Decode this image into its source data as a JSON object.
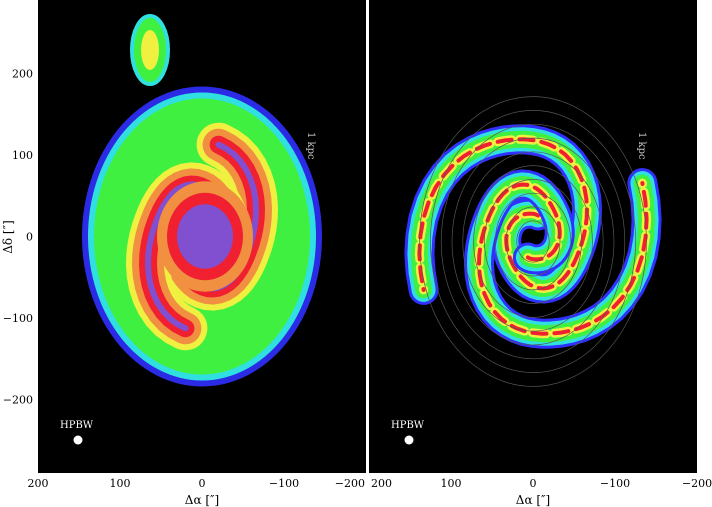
{
  "chart_data": [
    {
      "type": "heatmap",
      "panel": "left",
      "xlabel": "Δα [″]",
      "ylabel": "Δδ [″]",
      "xlim": [
        200,
        -200
      ],
      "ylim": [
        -290,
        290
      ],
      "xticks": [
        "200",
        "100",
        "0",
        "−100",
        "−200"
      ],
      "yticks": [
        "200",
        "100",
        "0",
        "−100",
        "−200"
      ],
      "scale_bar_label": "1 kpc",
      "beam_label": "HPBW",
      "background": "#000000",
      "colormap": [
        "#3030ff",
        "#30e0e0",
        "#40f040",
        "#f0f040",
        "#f09040",
        "#f02030",
        "#8050d0"
      ]
    },
    {
      "type": "heatmap",
      "panel": "right",
      "xlabel": "Δα [″]",
      "xlim": [
        200,
        -200
      ],
      "ylim": [
        -290,
        290
      ],
      "xticks": [
        "200",
        "100",
        "0",
        "−100",
        "−200"
      ],
      "scale_bar_label": "1 kpc",
      "beam_label": "HPBW",
      "overlay": "contours",
      "background": "#000000",
      "colormap": [
        "#3030ff",
        "#30e0e0",
        "#40f040",
        "#f0f040",
        "#f09040",
        "#f02030",
        "#8050d0"
      ]
    }
  ]
}
